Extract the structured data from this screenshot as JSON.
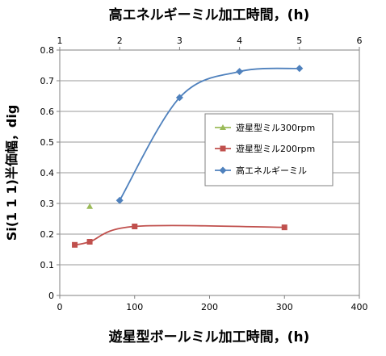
{
  "chart_data": {
    "type": "scatter",
    "title": "",
    "top_axis_label": "高エネルギーミル加工時間，(h)",
    "top_axis_range": [
      1,
      6
    ],
    "top_ticks": [
      "1",
      "2",
      "3",
      "4",
      "5",
      "6"
    ],
    "xlabel": "遊星型ボールミル加工時間，(h)",
    "xlim": [
      0,
      400
    ],
    "x_ticks": [
      "0",
      "100",
      "200",
      "300",
      "400"
    ],
    "ylabel": "Si(1 1 1)半価幅，dig",
    "ylim": [
      0,
      0.8
    ],
    "y_ticks": [
      "0",
      "0.1",
      "0.2",
      "0.3",
      "0.4",
      "0.5",
      "0.6",
      "0.7",
      "0.8"
    ],
    "grid": "horizontal",
    "legend_position": "middle-right",
    "series": [
      {
        "name": "遊星型ミル300rpm",
        "axis": "bottom",
        "marker": "triangle",
        "color": "#9bbb59",
        "line": false,
        "x": [
          40
        ],
        "y": [
          0.29
        ]
      },
      {
        "name": "遊星型ミル200rpm",
        "axis": "bottom",
        "marker": "square",
        "color": "#c0504d",
        "line": true,
        "x": [
          20,
          40,
          100,
          300
        ],
        "y": [
          0.165,
          0.175,
          0.225,
          0.222
        ]
      },
      {
        "name": "高エネルギーミル",
        "axis": "top",
        "marker": "diamond",
        "color": "#4f81bd",
        "line": true,
        "x": [
          2,
          3,
          4,
          5
        ],
        "y": [
          0.31,
          0.645,
          0.73,
          0.74
        ]
      }
    ]
  }
}
